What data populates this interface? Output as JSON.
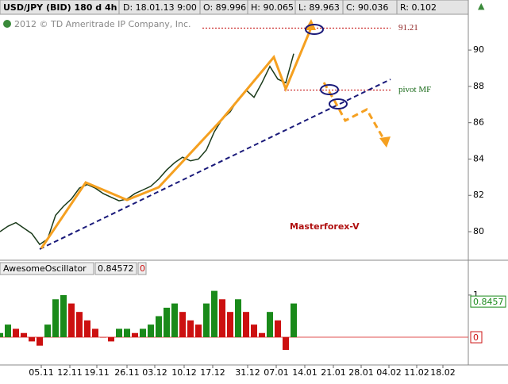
{
  "header": {
    "symbol": "USD/JPY (BID) 180 d 4h",
    "date": "D: 18.01.13 9:00",
    "open": "O: 89.996",
    "high": "H: 90.065",
    "low": "L: 89.963",
    "close": "C: 90.036",
    "range": "R: 0.102",
    "copyright": "2012 © TD Ameritrade IP Company, Inc."
  },
  "chart_data": [
    {
      "type": "line",
      "color": "#1a3a1a",
      "watermark": "Masterforex-V",
      "values": [
        80.0,
        80.3,
        80.5,
        80.2,
        79.9,
        79.3,
        79.6,
        80.9,
        81.4,
        81.8,
        82.4,
        82.6,
        82.4,
        82.1,
        81.9,
        81.7,
        81.8,
        82.1,
        82.3,
        82.5,
        82.9,
        83.4,
        83.8,
        84.1,
        83.9,
        84.0,
        84.5,
        85.5,
        86.2,
        86.6,
        87.3,
        87.8,
        87.4,
        88.2,
        89.1,
        88.4,
        88.2,
        89.8
      ],
      "xlim": [
        0,
        59
      ],
      "ylim": [
        78.56,
        91.97
      ],
      "yticks": [
        80,
        82,
        84,
        86,
        88,
        90
      ],
      "xticks": [
        {
          "value": 5.2,
          "label": "05.11"
        },
        {
          "value": 8.8,
          "label": "12.11"
        },
        {
          "value": 12.2,
          "label": "19.11"
        },
        {
          "value": 16,
          "label": "26.11"
        },
        {
          "value": 19.5,
          "label": "03.12"
        },
        {
          "value": 23.2,
          "label": "10.12"
        },
        {
          "value": 26.8,
          "label": "17.12"
        },
        {
          "value": 31.2,
          "label": "31.12"
        },
        {
          "value": 34.8,
          "label": "07.01"
        },
        {
          "value": 38.4,
          "label": "14.01"
        },
        {
          "value": 42,
          "label": "21.01"
        },
        {
          "value": 45.5,
          "label": "28.01"
        },
        {
          "value": 49,
          "label": "04.02"
        },
        {
          "value": 52.5,
          "label": "11.02"
        },
        {
          "value": 55.8,
          "label": "18.02"
        }
      ],
      "levels": [
        {
          "value": 91.21,
          "label": "91.21",
          "color": "#c00000"
        },
        {
          "value": 87.8,
          "label": "pivot MF",
          "color": "#c00000"
        }
      ]
    },
    {
      "type": "histogram",
      "name": "AwesomeOscillator",
      "last": "0.84572",
      "zero": "0",
      "up_color": "#1a8a1a",
      "down_color": "#cc1010",
      "values": [
        0.1,
        0.3,
        0.2,
        0.1,
        -0.1,
        -0.2,
        0.3,
        0.9,
        1.0,
        0.8,
        0.6,
        0.4,
        0.2,
        0.0,
        -0.1,
        0.2,
        0.2,
        0.1,
        0.2,
        0.3,
        0.5,
        0.7,
        0.8,
        0.6,
        0.4,
        0.3,
        0.8,
        1.1,
        0.9,
        0.6,
        0.9,
        0.6,
        0.3,
        0.1,
        0.6,
        0.4,
        -0.3,
        0.8
      ],
      "xlim": [
        0,
        59
      ],
      "ylim": [
        -0.62,
        1.45
      ],
      "yticks": [
        1
      ],
      "value_labels": [
        {
          "value": 0.8457,
          "label": "0.8457",
          "color": "#1a8a1a"
        },
        {
          "value": 0,
          "label": "0",
          "color": "#cc1010"
        }
      ]
    }
  ]
}
